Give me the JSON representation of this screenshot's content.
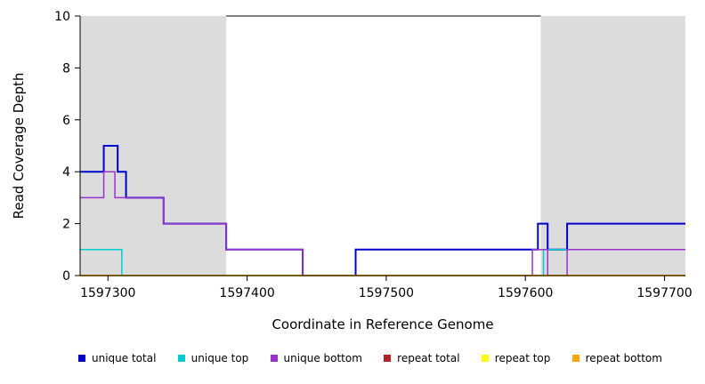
{
  "chart_data": {
    "type": "line",
    "title": "",
    "xlabel": "Coordinate in Reference Genome",
    "ylabel": "Read Coverage Depth",
    "xlim": [
      1597280,
      1597715
    ],
    "ylim": [
      0,
      10
    ],
    "x_ticks": [
      1597300,
      1597400,
      1597500,
      1597600,
      1597700
    ],
    "y_ticks": [
      0,
      2,
      4,
      6,
      8,
      10
    ],
    "grid": false,
    "legend_position": "bottom",
    "background_color": "#ffffff",
    "shaded_region_color": "#dcdcdc",
    "shaded_regions": [
      {
        "x1": 1597280,
        "x2": 1597385
      },
      {
        "x1": 1597611,
        "x2": 1597715
      }
    ],
    "top_line": {
      "y": 10,
      "x1": 1597385,
      "x2": 1597611,
      "color": "#000000"
    },
    "series": [
      {
        "name": "unique total",
        "color": "#0000CD",
        "width": 2,
        "steps": [
          [
            1597280,
            4
          ],
          [
            1597297,
            5
          ],
          [
            1597307,
            4
          ],
          [
            1597313,
            3
          ],
          [
            1597340,
            2
          ],
          [
            1597385,
            1
          ],
          [
            1597440,
            0
          ],
          [
            1597478,
            1
          ],
          [
            1597609,
            2
          ],
          [
            1597616,
            1
          ],
          [
            1597630,
            2
          ],
          [
            1597715,
            2
          ]
        ]
      },
      {
        "name": "unique top",
        "color": "#00CDCD",
        "width": 1.5,
        "steps": [
          [
            1597280,
            1
          ],
          [
            1597310,
            0
          ],
          [
            1597613,
            1
          ],
          [
            1597715,
            1
          ]
        ]
      },
      {
        "name": "unique bottom",
        "color": "#9933CC",
        "width": 1.5,
        "steps": [
          [
            1597280,
            3
          ],
          [
            1597297,
            4
          ],
          [
            1597305,
            3
          ],
          [
            1597340,
            2
          ],
          [
            1597385,
            1
          ],
          [
            1597440,
            0
          ],
          [
            1597605,
            1
          ],
          [
            1597616,
            0
          ],
          [
            1597630,
            1
          ],
          [
            1597715,
            1
          ]
        ]
      },
      {
        "name": "repeat total",
        "color": "#B22222",
        "width": 1.5,
        "steps": [
          [
            1597280,
            0
          ],
          [
            1597715,
            0
          ]
        ]
      },
      {
        "name": "repeat top",
        "color": "#FFFF00",
        "width": 1.5,
        "steps": [
          [
            1597280,
            0
          ],
          [
            1597715,
            0
          ]
        ]
      },
      {
        "name": "repeat bottom",
        "color": "#FFA500",
        "width": 1.5,
        "steps": [
          [
            1597280,
            0
          ],
          [
            1597715,
            0
          ]
        ]
      }
    ],
    "legend": [
      {
        "label": "unique total",
        "color": "#0000CD"
      },
      {
        "label": "unique top",
        "color": "#00CDCD"
      },
      {
        "label": "unique bottom",
        "color": "#9933CC"
      },
      {
        "label": "repeat total",
        "color": "#B22222"
      },
      {
        "label": "repeat top",
        "color": "#FFFF00"
      },
      {
        "label": "repeat bottom",
        "color": "#FFA500"
      }
    ]
  }
}
